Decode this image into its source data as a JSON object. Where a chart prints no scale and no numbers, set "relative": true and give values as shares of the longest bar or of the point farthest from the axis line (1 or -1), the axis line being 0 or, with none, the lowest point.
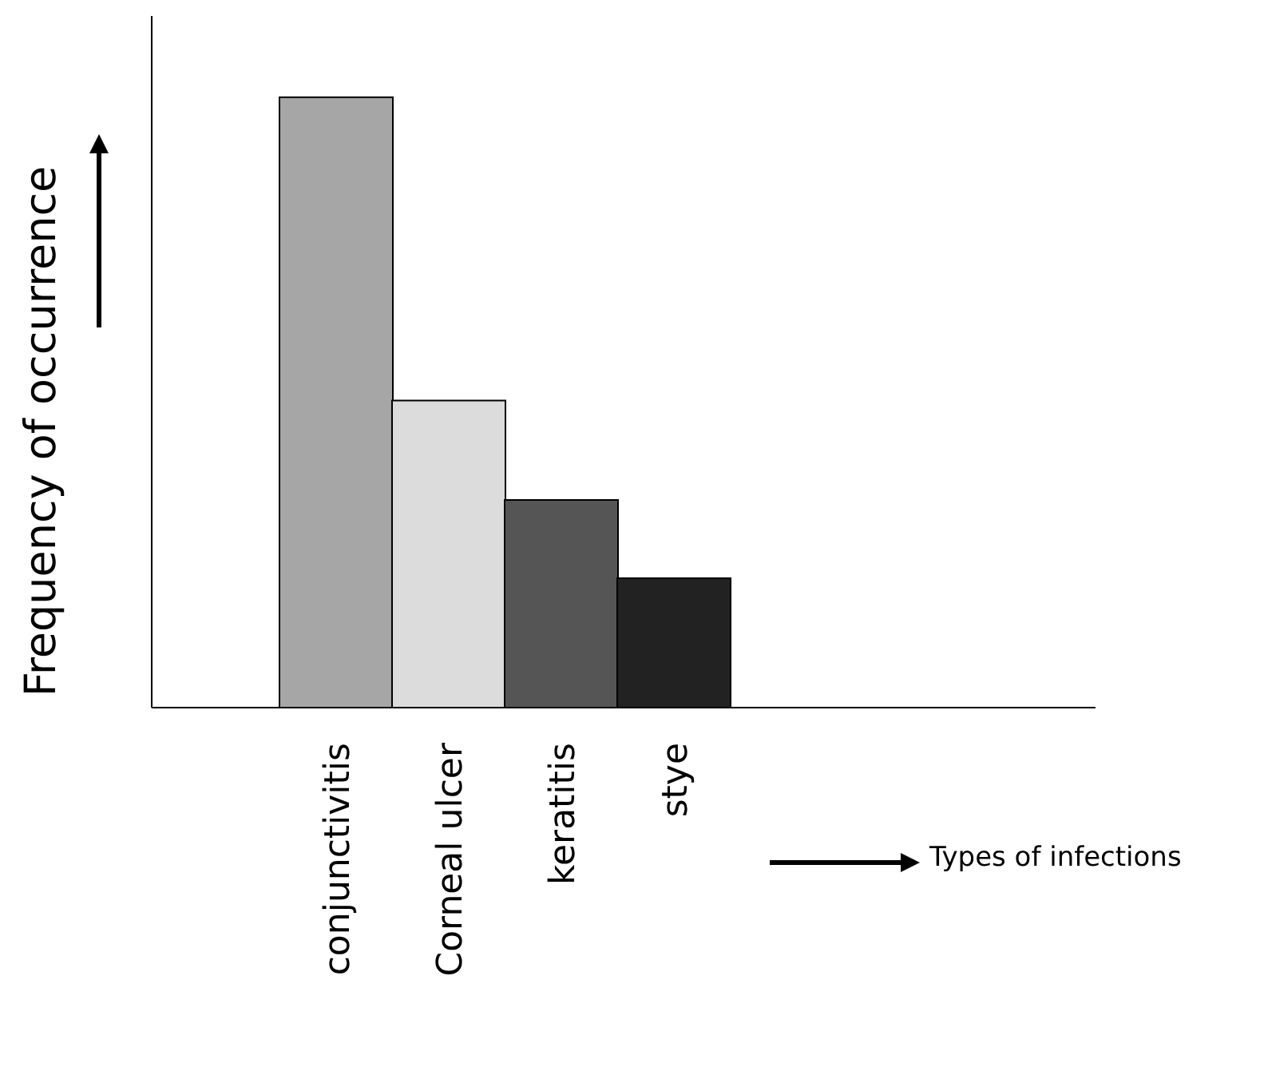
{
  "chart_data": {
    "type": "bar",
    "relative": true,
    "annotations": [
      "Types of infections"
    ],
    "ylabel": "Frequency of occurrence",
    "categories": [
      "conjunctivitis",
      "Corneal ulcer",
      "keratitis",
      "stye"
    ],
    "values": [
      1,
      0.503,
      0.34,
      0.212
    ],
    "colors": [
      "#a6a6a6",
      "#dcdcdc",
      "#555555",
      "#222222"
    ],
    "grid": false,
    "legend": false
  }
}
